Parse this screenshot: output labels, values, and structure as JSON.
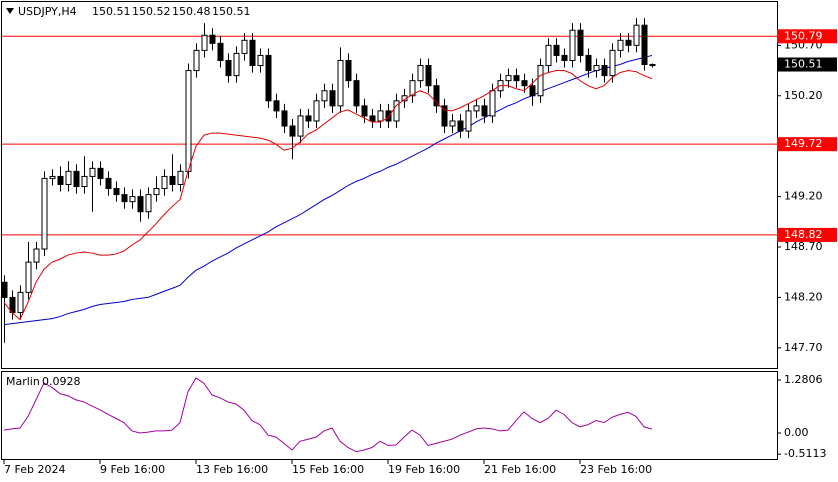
{
  "chart_data": {
    "type": "candlestick",
    "symbol": "USDJPY,H4",
    "categories": [
      "7 Feb 2024",
      null,
      null,
      null,
      null,
      null,
      null,
      null,
      null,
      null,
      null,
      null,
      "9 Feb 16:00",
      null,
      null,
      null,
      null,
      null,
      null,
      null,
      null,
      null,
      null,
      null,
      "13 Feb 16:00",
      null,
      null,
      null,
      null,
      null,
      null,
      null,
      null,
      null,
      null,
      null,
      "15 Feb 16:00",
      null,
      null,
      null,
      null,
      null,
      null,
      null,
      null,
      null,
      null,
      null,
      "19 Feb 16:00",
      null,
      null,
      null,
      null,
      null,
      null,
      null,
      null,
      null,
      null,
      null,
      "21 Feb 16:00",
      null,
      null,
      null,
      null,
      null,
      null,
      null,
      null,
      null,
      null,
      null,
      "23 Feb 16:00",
      null,
      null,
      null,
      null,
      null,
      null,
      null,
      null,
      null
    ],
    "ohlc": [
      [
        148.35,
        148.42,
        147.75,
        148.2
      ],
      [
        148.2,
        148.27,
        147.98,
        148.05
      ],
      [
        148.05,
        148.32,
        147.98,
        148.25
      ],
      [
        148.25,
        148.75,
        148.18,
        148.55
      ],
      [
        148.55,
        148.75,
        148.48,
        148.68
      ],
      [
        148.68,
        149.45,
        148.61,
        149.38
      ],
      [
        149.38,
        149.47,
        149.31,
        149.4
      ],
      [
        149.4,
        149.5,
        149.25,
        149.32
      ],
      [
        149.32,
        149.55,
        149.25,
        149.45
      ],
      [
        149.45,
        149.52,
        149.23,
        149.3
      ],
      [
        149.3,
        149.6,
        149.23,
        149.4
      ],
      [
        149.4,
        149.55,
        149.05,
        149.48
      ],
      [
        149.48,
        149.55,
        149.31,
        149.38
      ],
      [
        149.38,
        149.45,
        149.21,
        149.28
      ],
      [
        149.28,
        149.35,
        149.15,
        149.22
      ],
      [
        149.22,
        149.29,
        149.08,
        149.15
      ],
      [
        149.15,
        149.27,
        149.08,
        149.2
      ],
      [
        149.2,
        149.27,
        148.95,
        149.05
      ],
      [
        149.05,
        149.29,
        148.98,
        149.22
      ],
      [
        149.22,
        149.4,
        149.15,
        149.28
      ],
      [
        149.28,
        149.47,
        149.21,
        149.4
      ],
      [
        149.4,
        149.62,
        149.25,
        149.32
      ],
      [
        149.32,
        149.52,
        149.25,
        149.45
      ],
      [
        149.45,
        150.52,
        149.38,
        150.45
      ],
      [
        150.45,
        150.72,
        150.38,
        150.65
      ],
      [
        150.65,
        150.92,
        150.58,
        150.8
      ],
      [
        150.8,
        150.87,
        150.65,
        150.72
      ],
      [
        150.72,
        150.79,
        150.48,
        150.55
      ],
      [
        150.55,
        150.62,
        150.33,
        150.4
      ],
      [
        150.4,
        150.69,
        150.33,
        150.62
      ],
      [
        150.62,
        150.82,
        150.55,
        150.75
      ],
      [
        150.75,
        150.82,
        150.43,
        150.5
      ],
      [
        150.5,
        150.67,
        150.43,
        150.6
      ],
      [
        150.6,
        150.67,
        150.08,
        150.15
      ],
      [
        150.15,
        150.22,
        149.98,
        150.05
      ],
      [
        150.05,
        150.12,
        149.83,
        149.9
      ],
      [
        149.9,
        149.97,
        149.57,
        149.8
      ],
      [
        149.8,
        150.07,
        149.73,
        150
      ],
      [
        150,
        150.07,
        149.88,
        149.95
      ],
      [
        149.95,
        150.22,
        149.88,
        150.15
      ],
      [
        150.15,
        150.32,
        150.08,
        150.25
      ],
      [
        150.25,
        150.32,
        150.03,
        150.1
      ],
      [
        150.1,
        150.68,
        150.03,
        150.55
      ],
      [
        150.55,
        150.62,
        150.28,
        150.35
      ],
      [
        150.35,
        150.42,
        150.03,
        150.1
      ],
      [
        150.1,
        150.17,
        149.93,
        150
      ],
      [
        150,
        150.07,
        149.88,
        149.95
      ],
      [
        149.95,
        150.12,
        149.88,
        150.05
      ],
      [
        150.05,
        150.12,
        149.88,
        149.95
      ],
      [
        149.95,
        150.22,
        149.88,
        150.15
      ],
      [
        150.15,
        150.27,
        150.08,
        150.2
      ],
      [
        150.2,
        150.42,
        150.13,
        150.35
      ],
      [
        150.35,
        150.57,
        150.28,
        150.5
      ],
      [
        150.5,
        150.57,
        150.23,
        150.3
      ],
      [
        150.3,
        150.37,
        150.03,
        150.1
      ],
      [
        150.1,
        150.17,
        149.83,
        149.9
      ],
      [
        149.9,
        150.02,
        149.83,
        149.95
      ],
      [
        149.95,
        150.02,
        149.78,
        149.85
      ],
      [
        149.85,
        150.12,
        149.78,
        150.05
      ],
      [
        150.05,
        150.17,
        149.98,
        150.1
      ],
      [
        150.1,
        150.17,
        149.93,
        150
      ],
      [
        150,
        150.32,
        149.93,
        150.25
      ],
      [
        150.25,
        150.42,
        150.18,
        150.35
      ],
      [
        150.35,
        150.47,
        150.28,
        150.4
      ],
      [
        150.4,
        150.47,
        150.28,
        150.35
      ],
      [
        150.35,
        150.42,
        150.23,
        150.3
      ],
      [
        150.3,
        150.37,
        150.1,
        150.2
      ],
      [
        150.2,
        150.57,
        150.13,
        150.5
      ],
      [
        150.5,
        150.77,
        150.43,
        150.7
      ],
      [
        150.7,
        150.77,
        150.53,
        150.6
      ],
      [
        150.6,
        150.67,
        150.48,
        150.55
      ],
      [
        150.55,
        150.92,
        150.48,
        150.85
      ],
      [
        150.85,
        150.92,
        150.53,
        150.6
      ],
      [
        150.6,
        150.67,
        150.38,
        150.45
      ],
      [
        150.45,
        150.57,
        150.38,
        150.5
      ],
      [
        150.5,
        150.57,
        150.33,
        150.4
      ],
      [
        150.4,
        150.72,
        150.33,
        150.65
      ],
      [
        150.65,
        150.82,
        150.58,
        150.75
      ],
      [
        150.75,
        150.82,
        150.63,
        150.7
      ],
      [
        150.7,
        150.97,
        150.63,
        150.9
      ],
      [
        150.9,
        150.97,
        150.45,
        150.51
      ],
      [
        150.51,
        150.52,
        150.48,
        150.51
      ]
    ],
    "ma_fast": {
      "color": "#e00000",
      "values": [
        148.15,
        148.05,
        147.98,
        148.15,
        148.35,
        148.48,
        148.55,
        148.58,
        148.62,
        148.64,
        148.65,
        148.64,
        148.62,
        148.62,
        148.63,
        148.66,
        148.72,
        148.77,
        148.85,
        148.93,
        149.02,
        149.1,
        149.17,
        149.45,
        149.7,
        149.81,
        149.83,
        149.83,
        149.82,
        149.81,
        149.8,
        149.79,
        149.78,
        149.76,
        149.72,
        149.66,
        149.68,
        149.74,
        149.82,
        149.86,
        149.92,
        149.98,
        150.04,
        150.06,
        150.02,
        149.98,
        149.94,
        149.94,
        149.98,
        150.1,
        150.16,
        150.21,
        150.25,
        150.22,
        150.14,
        150.06,
        150.05,
        150.08,
        150.12,
        150.16,
        150.2,
        150.25,
        150.3,
        150.3,
        150.27,
        150.25,
        150.32,
        150.4,
        150.43,
        150.45,
        150.45,
        150.42,
        150.35,
        150.3,
        150.27,
        150.3,
        150.38,
        150.43,
        150.45,
        150.44,
        150.4,
        150.37
      ]
    },
    "ma_slow": {
      "color": "#0000cc",
      "values": [
        147.93,
        147.94,
        147.95,
        147.96,
        147.97,
        147.98,
        147.99,
        148.01,
        148.04,
        148.06,
        148.08,
        148.11,
        148.13,
        148.14,
        148.15,
        148.16,
        148.18,
        148.19,
        148.2,
        148.23,
        148.26,
        148.29,
        148.32,
        148.4,
        148.47,
        148.51,
        148.56,
        148.6,
        148.64,
        148.69,
        148.73,
        148.77,
        148.81,
        148.85,
        148.9,
        148.94,
        148.98,
        149.02,
        149.07,
        149.12,
        149.17,
        149.21,
        149.26,
        149.31,
        149.35,
        149.38,
        149.42,
        149.45,
        149.49,
        149.52,
        149.56,
        149.6,
        149.64,
        149.68,
        149.73,
        149.77,
        149.81,
        149.85,
        149.89,
        149.94,
        149.98,
        150.02,
        150.06,
        150.1,
        150.13,
        150.17,
        150.2,
        150.24,
        150.27,
        150.3,
        150.33,
        150.36,
        150.39,
        150.42,
        150.45,
        150.47,
        150.49,
        150.51,
        150.54,
        150.56,
        150.58,
        150.6
      ]
    },
    "hlines": [
      150.79,
      149.72,
      148.82
    ],
    "hline_color": "#ff0000",
    "ylim": [
      147.5,
      151.13
    ],
    "yticks": [
      {
        "value": 150.7,
        "label": "150.70"
      },
      {
        "value": 150.2,
        "label": "150.20"
      },
      {
        "value": 149.2,
        "label": "149.20"
      },
      {
        "value": 148.7,
        "label": "148.70"
      },
      {
        "value": 148.2,
        "label": "148.20"
      },
      {
        "value": 147.7,
        "label": "147.70"
      }
    ],
    "indicator": {
      "name": "Marlin",
      "color": "#a000a0",
      "values": [
        0.07,
        0.1,
        0.12,
        0.4,
        0.8,
        1.21,
        1.1,
        0.95,
        0.9,
        0.8,
        0.75,
        0.65,
        0.56,
        0.45,
        0.35,
        0.25,
        0.05,
        0,
        0.02,
        0.05,
        0.05,
        0.07,
        0.25,
        1,
        1.33,
        1.2,
        0.92,
        0.85,
        0.75,
        0.7,
        0.55,
        0.3,
        0.2,
        -0.05,
        -0.1,
        -0.25,
        -0.41,
        -0.2,
        -0.15,
        -0.1,
        0.05,
        0.12,
        -0.2,
        -0.35,
        -0.45,
        -0.41,
        -0.35,
        -0.2,
        -0.3,
        -0.29,
        -0.1,
        0.07,
        -0.05,
        -0.3,
        -0.25,
        -0.2,
        -0.15,
        -0.05,
        0.02,
        0.1,
        0.12,
        0.1,
        0.05,
        0.07,
        0.3,
        0.51,
        0.35,
        0.25,
        0.35,
        0.55,
        0.45,
        0.25,
        0.15,
        0.2,
        0.3,
        0.25,
        0.38,
        0.45,
        0.5,
        0.4,
        0.15,
        0.0928
      ],
      "y2lim": [
        -0.652,
        1.473
      ],
      "y2ticks": [
        1.2806,
        {
          "value": 0,
          "label": "0.00"
        },
        -0.5113
      ]
    }
  }
}
